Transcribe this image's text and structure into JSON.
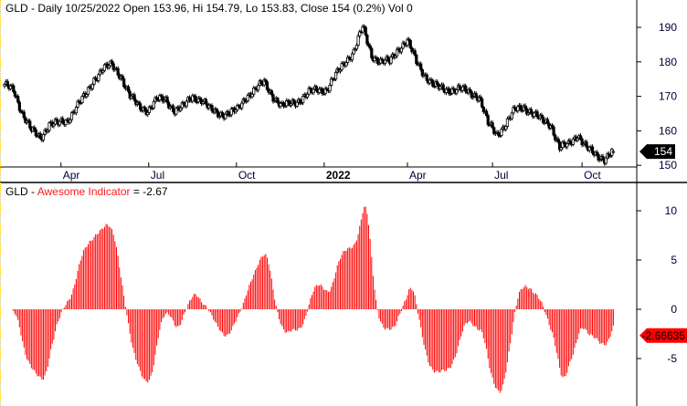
{
  "price_pane": {
    "symbol": "GLD",
    "title": "GLD - Daily 10/25/2022 Open 153.96, Hi 154.79, Lo 153.83, Close 154 (0.2%) Vol 0",
    "last_price_tag": "154",
    "y_ticks": [
      150,
      160,
      170,
      180,
      190
    ],
    "x_ticks": [
      {
        "label": "Apr",
        "at_week": 6.3,
        "bold": false
      },
      {
        "label": "Jul",
        "at_week": 16.1,
        "bold": false
      },
      {
        "label": "Oct",
        "at_week": 25.9,
        "bold": false
      },
      {
        "label": "2022",
        "at_week": 35.7,
        "bold": true
      },
      {
        "label": "Apr",
        "at_week": 45.0,
        "bold": false
      },
      {
        "label": "Jul",
        "at_week": 54.5,
        "bold": false
      },
      {
        "label": "Oct",
        "at_week": 64.5,
        "bold": false
      }
    ]
  },
  "indicator_pane": {
    "prefix": "GLD - ",
    "name": "Awesome Indicator",
    "value_text": " = -2.67",
    "last_value_tag": "-2.66635",
    "y_ticks": [
      -5,
      0,
      5,
      10
    ]
  },
  "colors": {
    "indicator": "#ff0000",
    "tick_labels": "#000033",
    "price_tag_bg": "#000000",
    "indicator_tag_bg": "#ff0000"
  },
  "chart_data": [
    {
      "type": "candlestick",
      "title": "GLD - Daily",
      "interval": "daily",
      "ylim": [
        149,
        193
      ],
      "weekly_closes": [
        173,
        172,
        165,
        160,
        158,
        162,
        162,
        163,
        167,
        170,
        175,
        178,
        179,
        176,
        170,
        167,
        166,
        169,
        169,
        166,
        167,
        170,
        169,
        166,
        165,
        165,
        166,
        170,
        172,
        174,
        170,
        167,
        168,
        169,
        171,
        172,
        172,
        176,
        180,
        183,
        190,
        182,
        180,
        180,
        184,
        186,
        180,
        176,
        173,
        172,
        172,
        172,
        171,
        170,
        162,
        159,
        162,
        166,
        167,
        165,
        163,
        162,
        155,
        156,
        159,
        155,
        153,
        152,
        154
      ],
      "last_bar": {
        "date": "10/25/2022",
        "open": 153.96,
        "high": 154.79,
        "low": 153.83,
        "close": 154,
        "change_pct": 0.2,
        "volume": 0
      }
    },
    {
      "type": "bar",
      "title": "Awesome Indicator",
      "ylim": [
        -9,
        12
      ],
      "last_value": -2.66635
    }
  ]
}
